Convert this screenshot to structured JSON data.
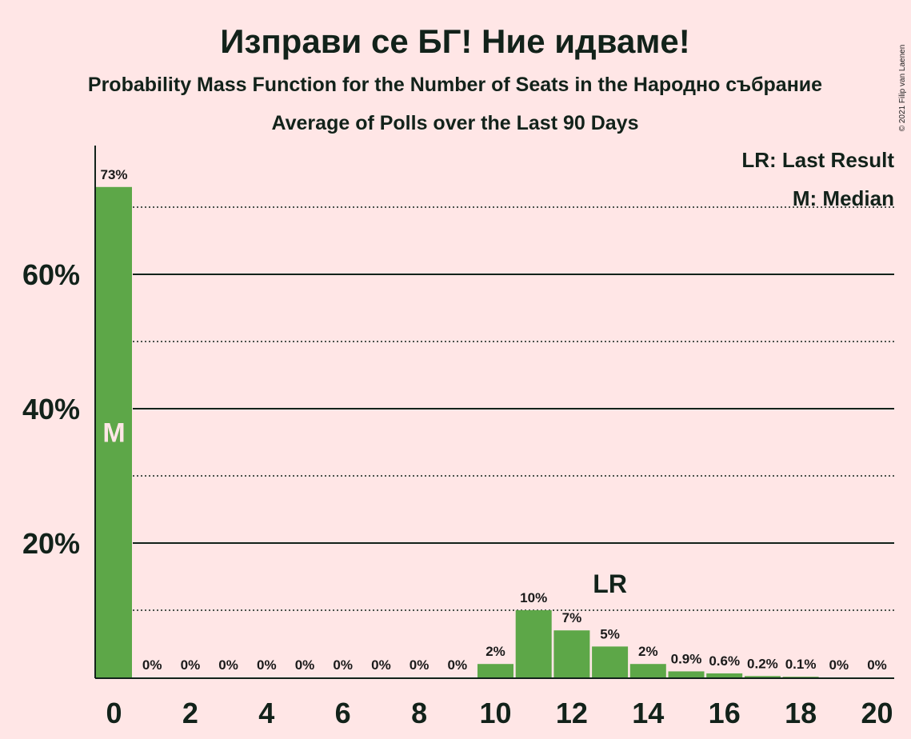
{
  "header": {
    "title": "Изправи се БГ! Ние идваме!",
    "subtitle": "Probability Mass Function for the Number of Seats in the Народно събрание",
    "subtitle2": "Average of Polls over the Last 90 Days",
    "copyright": "© 2021 Filip van Laenen"
  },
  "legend": {
    "last_result": "LR: Last Result",
    "median": "M: Median"
  },
  "markers": {
    "median_label": "M",
    "median_seat": 0,
    "last_result_label": "LR",
    "last_result_seat": 13
  },
  "colors": {
    "background": "#FFE6E6",
    "bar": "#5DA748",
    "axis": "#12221a"
  },
  "chart_data": {
    "type": "bar",
    "title": "Изправи се БГ! Ние идваме!",
    "xlabel": "",
    "ylabel": "",
    "categories": [
      0,
      1,
      2,
      3,
      4,
      5,
      6,
      7,
      8,
      9,
      10,
      11,
      12,
      13,
      14,
      15,
      16,
      17,
      18,
      19,
      20
    ],
    "values": [
      73,
      0,
      0,
      0,
      0,
      0,
      0,
      0,
      0,
      0,
      2,
      10,
      7,
      4.6,
      2,
      0.9,
      0.6,
      0.2,
      0.1,
      0,
      0
    ],
    "labels": [
      "73%",
      "0%",
      "0%",
      "0%",
      "0%",
      "0%",
      "0%",
      "0%",
      "0%",
      "0%",
      "2%",
      "10%",
      "7%",
      "5%",
      "2%",
      "0.9%",
      "0.6%",
      "0.2%",
      "0.1%",
      "0%",
      "0%"
    ],
    "x_tick_labels": [
      "0",
      "2",
      "4",
      "6",
      "8",
      "10",
      "12",
      "14",
      "16",
      "18",
      "20"
    ],
    "x_ticks": [
      0,
      2,
      4,
      6,
      8,
      10,
      12,
      14,
      16,
      18,
      20
    ],
    "y_tick_labels": [
      "20%",
      "40%",
      "60%"
    ],
    "y_ticks": [
      20,
      40,
      60
    ],
    "ylim": [
      0,
      79
    ],
    "grid": "solid at 20% steps, dotted at 10% steps",
    "legend_position": "top-right"
  }
}
